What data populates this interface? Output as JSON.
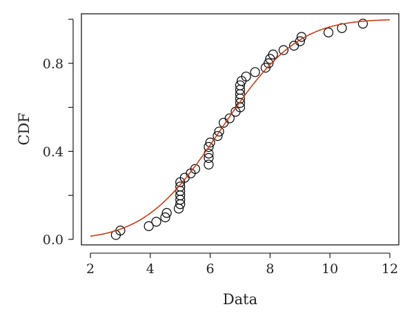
{
  "chart_data": {
    "type": "scatter",
    "title": "",
    "xlabel": "Data",
    "ylabel": "CDF",
    "xlim": [
      1.7,
      12.3
    ],
    "ylim": [
      -0.025,
      1.025
    ],
    "xticks": [
      2,
      4,
      6,
      8,
      10,
      12
    ],
    "yticks": [
      0.0,
      0.4,
      0.8
    ],
    "ytick_labels": [
      "0.0",
      "0.4",
      "0.8"
    ],
    "grid": false,
    "legend": "none",
    "series": [
      {
        "kind": "points",
        "marker": "open-circle",
        "color": "#000000",
        "x": [
          2.85,
          3.0,
          3.95,
          4.2,
          4.5,
          4.55,
          4.95,
          5.0,
          5.0,
          5.0,
          5.0,
          5.0,
          5.0,
          5.15,
          5.35,
          5.5,
          5.95,
          5.95,
          5.95,
          5.95,
          6.0,
          6.25,
          6.3,
          6.45,
          6.65,
          6.85,
          7.0,
          7.0,
          7.0,
          7.0,
          7.0,
          7.0,
          7.05,
          7.2,
          7.5,
          7.85,
          7.95,
          8.0,
          8.1,
          8.45,
          8.8,
          9.0,
          9.05,
          9.95,
          10.4,
          11.1
        ],
        "y": [
          0.02,
          0.04,
          0.06,
          0.08,
          0.1,
          0.12,
          0.14,
          0.16,
          0.18,
          0.2,
          0.22,
          0.24,
          0.26,
          0.28,
          0.3,
          0.32,
          0.34,
          0.37,
          0.39,
          0.42,
          0.44,
          0.47,
          0.49,
          0.53,
          0.55,
          0.58,
          0.6,
          0.62,
          0.64,
          0.66,
          0.68,
          0.7,
          0.72,
          0.74,
          0.76,
          0.78,
          0.8,
          0.82,
          0.84,
          0.86,
          0.88,
          0.9,
          0.92,
          0.94,
          0.96,
          0.98
        ]
      },
      {
        "kind": "line",
        "color": "#c23b14",
        "mean": 6.36,
        "sd": 2.0,
        "x": [
          2,
          2.5,
          3,
          3.5,
          4,
          4.5,
          5,
          5.5,
          6,
          6.5,
          7,
          7.5,
          8,
          8.5,
          9,
          9.5,
          10,
          10.5,
          11,
          11.5,
          12
        ],
        "y": [
          0.015,
          0.027,
          0.047,
          0.077,
          0.119,
          0.176,
          0.248,
          0.334,
          0.429,
          0.528,
          0.624,
          0.713,
          0.79,
          0.853,
          0.901,
          0.937,
          0.962,
          0.978,
          0.987,
          0.993,
          0.996
        ]
      }
    ]
  }
}
